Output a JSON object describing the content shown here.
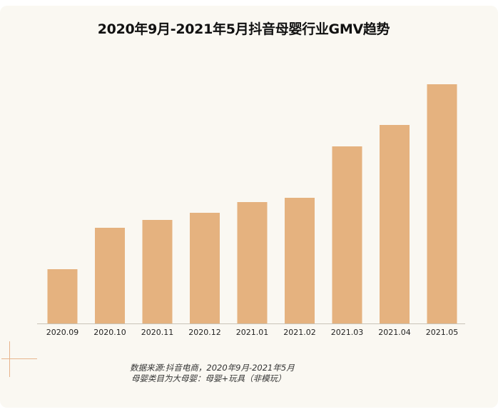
{
  "chart_data": {
    "type": "bar",
    "title": "2020年9月-2021年5月抖音母婴行业GMV趋势",
    "categories": [
      "2020.09",
      "2020.10",
      "2020.11",
      "2020.12",
      "2021.01",
      "2021.02",
      "2021.03",
      "2021.04",
      "2021.05"
    ],
    "values": [
      76,
      134,
      145,
      155,
      170,
      176,
      248,
      278,
      335
    ],
    "xlabel": "",
    "ylabel": "",
    "ylim": [
      0,
      345
    ],
    "grid": false,
    "legend": "none",
    "bar_color": "#e5b27f"
  },
  "footnote": {
    "source": "数据来源:抖音电商，2020年9月-2021年5月",
    "note": "母婴类目为大母婴：母婴+玩具（非模玩）"
  }
}
